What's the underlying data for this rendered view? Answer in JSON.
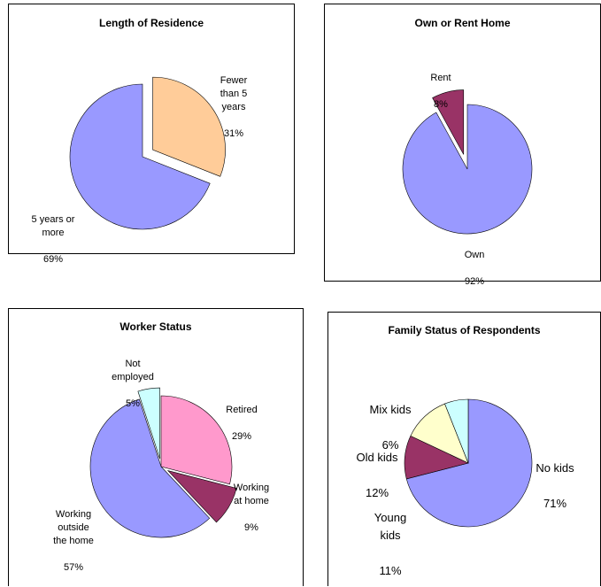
{
  "chart_data": [
    {
      "type": "pie",
      "title": "Length of Residence",
      "categories": [
        "Fewer than 5 years",
        "5 years or more"
      ],
      "values": [
        31,
        69
      ],
      "colors": [
        "#FFCC99",
        "#9999FF"
      ],
      "exploded": [
        true,
        false
      ],
      "labels": [
        {
          "name": "Fewer\nthan 5\nyears",
          "pct": "31%"
        },
        {
          "name": "5 years or\nmore",
          "pct": "69%"
        }
      ]
    },
    {
      "type": "pie",
      "title": "Own or Rent Home",
      "categories": [
        "Rent",
        "Own"
      ],
      "values": [
        8,
        92
      ],
      "colors": [
        "#993366",
        "#9999FF"
      ],
      "exploded": [
        true,
        false
      ],
      "labels": [
        {
          "name": "Rent",
          "pct": "8%"
        },
        {
          "name": "Own",
          "pct": "92%"
        }
      ]
    },
    {
      "type": "pie",
      "title": "Worker Status",
      "categories": [
        "Retired",
        "Working at home",
        "Working outside the home",
        "Not employed"
      ],
      "values": [
        29,
        9,
        57,
        5
      ],
      "colors": [
        "#FF99CC",
        "#993366",
        "#9999FF",
        "#CCFFFF"
      ],
      "exploded": [
        false,
        true,
        false,
        true
      ],
      "labels": [
        {
          "name": "Retired",
          "pct": "29%"
        },
        {
          "name": "Working\nat home",
          "pct": "9%"
        },
        {
          "name": "Working\noutside\nthe home",
          "pct": "57%"
        },
        {
          "name": "Not\nemployed",
          "pct": "5%"
        }
      ]
    },
    {
      "type": "pie",
      "title": "Family Status of Respondents",
      "categories": [
        "No kids",
        "Young kids",
        "Old kids",
        "Mix kids"
      ],
      "values": [
        71,
        11,
        12,
        6
      ],
      "colors": [
        "#9999FF",
        "#993366",
        "#FFFFCC",
        "#CCFFFF"
      ],
      "exploded": [
        false,
        false,
        false,
        false
      ],
      "labels": [
        {
          "name": "No kids",
          "pct": "71%"
        },
        {
          "name": "Young\nkids",
          "pct": "11%"
        },
        {
          "name": "Old kids",
          "pct": "12%"
        },
        {
          "name": "Mix kids",
          "pct": "6%"
        }
      ]
    }
  ]
}
